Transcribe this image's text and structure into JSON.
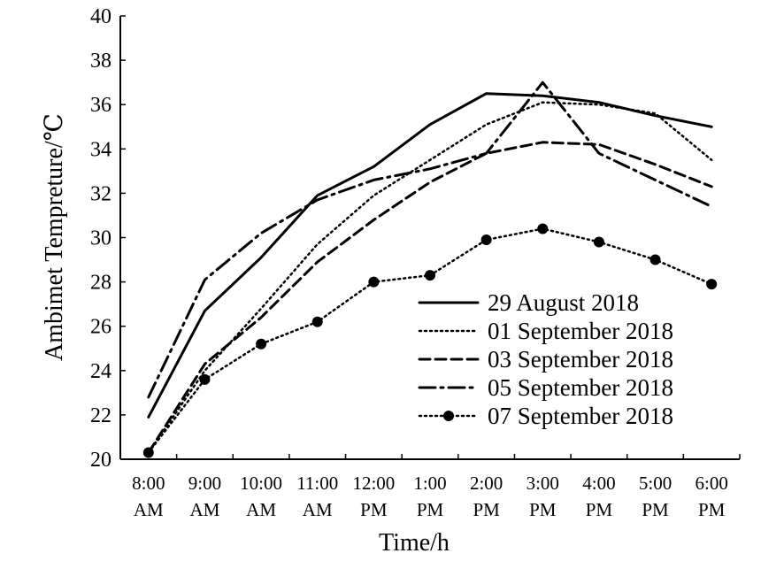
{
  "chart_data": {
    "type": "line",
    "title": "",
    "xlabel": "Time/h",
    "ylabel": "Ambimet Tempreture/℃",
    "ylim": [
      20,
      40
    ],
    "yticks": [
      "20",
      "22",
      "24",
      "26",
      "28",
      "30",
      "32",
      "34",
      "36",
      "38",
      "40"
    ],
    "categories": [
      [
        "8:00",
        "AM"
      ],
      [
        "9:00",
        "AM"
      ],
      [
        "10:00",
        "AM"
      ],
      [
        "11:00",
        "AM"
      ],
      [
        "12:00",
        "PM"
      ],
      [
        "1:00",
        "PM"
      ],
      [
        "2:00",
        "PM"
      ],
      [
        "3:00",
        "PM"
      ],
      [
        "4:00",
        "PM"
      ],
      [
        "5:00",
        "PM"
      ],
      [
        "6:00",
        "PM"
      ]
    ],
    "grid": false,
    "legend_position": "bottom-right",
    "series": [
      {
        "name": "29 August 2018",
        "style": "solid",
        "color": "#000000",
        "values": [
          21.9,
          26.7,
          29.1,
          31.9,
          33.2,
          35.1,
          36.5,
          36.4,
          36.1,
          35.5,
          35.0
        ]
      },
      {
        "name": "01 September 2018",
        "style": "dotted",
        "color": "#000000",
        "values": [
          20.3,
          24.0,
          26.8,
          29.7,
          31.9,
          33.5,
          35.1,
          36.1,
          36.0,
          35.6,
          33.5
        ]
      },
      {
        "name": "03 September 2018",
        "style": "dashed",
        "color": "#000000",
        "values": [
          20.3,
          24.3,
          26.4,
          28.9,
          30.8,
          32.5,
          33.8,
          34.3,
          34.2,
          33.3,
          32.3
        ]
      },
      {
        "name": "05 September 2018",
        "style": "dashdot",
        "color": "#000000",
        "values": [
          22.8,
          28.1,
          30.2,
          31.7,
          32.6,
          33.1,
          33.8,
          37.0,
          33.8,
          32.6,
          31.4
        ]
      },
      {
        "name": "07 September 2018",
        "style": "dotted-marker",
        "color": "#000000",
        "values": [
          20.3,
          23.6,
          25.2,
          26.2,
          28.0,
          28.3,
          29.9,
          30.4,
          29.8,
          29.0,
          27.9
        ]
      }
    ]
  }
}
